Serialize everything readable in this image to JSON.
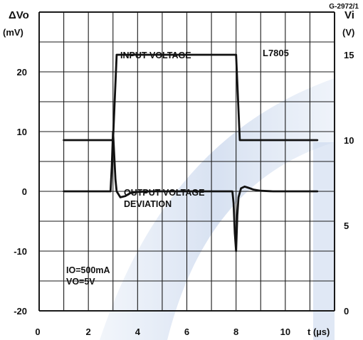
{
  "figure_code": "G-2972/1",
  "chart_data": {
    "type": "line",
    "device": "L7805",
    "left_axis": {
      "label": "ΔVo",
      "unit": "(mV)",
      "range": [
        -20,
        30
      ],
      "ticks": [
        20,
        10,
        0,
        -10,
        -20
      ],
      "tick_labels": [
        "20",
        "10",
        "0",
        "-10",
        "-20"
      ]
    },
    "right_axis": {
      "label": "Vi",
      "unit": "(V)",
      "range": [
        0,
        17.5
      ],
      "ticks": [
        15,
        10,
        5,
        0
      ],
      "tick_labels": [
        "15",
        "10",
        "5",
        "0"
      ]
    },
    "x_axis": {
      "range": [
        0,
        12
      ],
      "ticks": [
        0,
        2,
        4,
        6,
        8,
        10
      ],
      "tick_labels": [
        "0",
        "2",
        "4",
        "6",
        "8",
        "10"
      ],
      "label": "t (µs)"
    },
    "grid": true,
    "series": [
      {
        "name": "INPUT VOLTAGE",
        "axis": "right",
        "x": [
          1,
          3,
          3.15,
          8,
          8.15,
          11.3
        ],
        "y": [
          10,
          10,
          15,
          15,
          10,
          10
        ]
      },
      {
        "name": "OUTPUT VOLTAGE DEVIATION",
        "axis": "left",
        "x": [
          1,
          2.9,
          2.95,
          3.0,
          3.05,
          3.1,
          3.15,
          3.3,
          3.5,
          3.7,
          4.0,
          4.5,
          7.85,
          7.9,
          7.95,
          8.0,
          8.05,
          8.1,
          8.2,
          8.35,
          8.5,
          8.7,
          9.0,
          9.5,
          11.3
        ],
        "y": [
          0,
          0,
          4,
          10,
          6,
          2,
          0,
          -1,
          -0.8,
          -0.3,
          -0.1,
          0,
          0,
          -2,
          -7,
          -10,
          -4,
          -1,
          0.5,
          0.8,
          0.6,
          0.3,
          0.1,
          0,
          0
        ]
      }
    ],
    "annotations": {
      "input_label": "INPUT VOLTAGE",
      "output_label_line1": "OUTPUT VOLTAGE",
      "output_label_line2": "DEVIATION",
      "condition_line1": "IO=500mA",
      "condition_line2": "VO=5V"
    }
  }
}
